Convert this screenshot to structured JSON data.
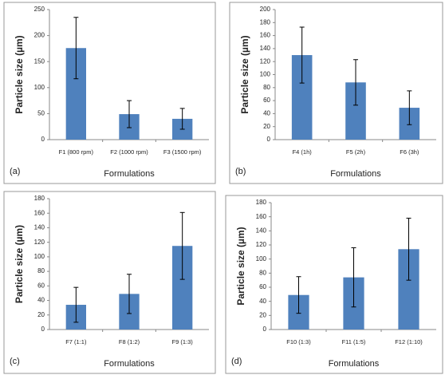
{
  "chart_data": [
    {
      "type": "bar",
      "panel_label": "(a)",
      "x_label": "Formulations",
      "y_label": "Particle size (µm)",
      "color": "#4f81bd",
      "categories": [
        "F1 (800 rpm)",
        "F2 (1000 rpm)",
        "F3 (1500 rpm)"
      ],
      "values": [
        176,
        49,
        40
      ],
      "errors": [
        59,
        26,
        20
      ],
      "ylim": [
        0,
        250
      ],
      "yticks": [
        0,
        50,
        100,
        150,
        200,
        250
      ]
    },
    {
      "type": "bar",
      "panel_label": "(b)",
      "x_label": "Formulations",
      "y_label": "Particle size (µm)",
      "color": "#4f81bd",
      "categories": [
        "F4 (1h)",
        "F5 (2h)",
        "F6 (3h)"
      ],
      "values": [
        130,
        88,
        49
      ],
      "errors": [
        43,
        35,
        26
      ],
      "ylim": [
        0,
        200
      ],
      "yticks": [
        0,
        20,
        40,
        60,
        80,
        100,
        120,
        140,
        160,
        180,
        200
      ]
    },
    {
      "type": "bar",
      "panel_label": "(c)",
      "x_label": "Formulations",
      "y_label": "Particle size (µm)",
      "color": "#4f81bd",
      "categories": [
        "F7 (1:1)",
        "F8 (1:2)",
        "F9 (1:3)"
      ],
      "values": [
        34,
        49,
        115
      ],
      "errors": [
        24,
        27,
        46
      ],
      "ylim": [
        0,
        180
      ],
      "yticks": [
        0,
        20,
        40,
        60,
        80,
        100,
        120,
        140,
        160,
        180
      ]
    },
    {
      "type": "bar",
      "panel_label": "(d)",
      "x_label": "Formulations",
      "y_label": "Particle size (µm)",
      "color": "#4f81bd",
      "categories": [
        "F10 (1:3)",
        "F11 (1:5)",
        "F12 (1:10)"
      ],
      "values": [
        49,
        74,
        114
      ],
      "errors": [
        26,
        42,
        44
      ],
      "ylim": [
        0,
        180
      ],
      "yticks": [
        0,
        20,
        40,
        60,
        80,
        100,
        120,
        140,
        160,
        180
      ]
    }
  ]
}
